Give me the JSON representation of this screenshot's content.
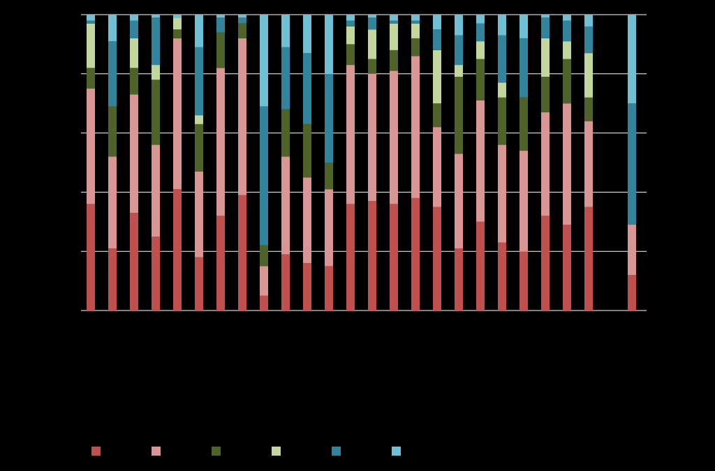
{
  "chart_data": {
    "type": "bar",
    "stacked": true,
    "orientation": "vertical",
    "normalized_percent": true,
    "ylim": [
      0,
      100
    ],
    "y_gridlines": [
      0,
      20,
      40,
      60,
      80,
      100
    ],
    "categories": [
      "",
      "",
      "",
      "",
      "",
      "",
      "",
      "",
      "",
      "",
      "",
      "",
      "",
      "",
      "",
      "",
      "",
      "",
      "",
      "",
      "",
      "",
      "",
      "",
      ""
    ],
    "x_slots": [
      0,
      1,
      2,
      3,
      4,
      5,
      6,
      7,
      8,
      9,
      10,
      11,
      12,
      13,
      14,
      15,
      16,
      17,
      18,
      19,
      20,
      21,
      22,
      23,
      25
    ],
    "legend": {
      "placement": "bottom-left"
    },
    "series": [
      {
        "color": "#c0504d",
        "values": [
          36,
          21,
          33,
          25,
          41,
          18,
          32,
          39,
          5,
          19,
          16,
          15,
          36,
          37,
          36,
          38,
          35,
          21,
          30,
          23,
          20,
          32,
          29,
          35,
          12
        ]
      },
      {
        "color": "#d99694",
        "values": [
          39,
          31,
          40,
          31,
          51,
          29,
          50,
          53,
          10,
          33,
          29,
          26,
          47,
          43,
          45,
          48,
          27,
          32,
          41,
          33,
          34,
          35,
          41,
          29,
          17
        ]
      },
      {
        "color": "#4f6228",
        "values": [
          7,
          17,
          9,
          22,
          3,
          16,
          12,
          5,
          7,
          16,
          18,
          9,
          7,
          5,
          7,
          6,
          8,
          26,
          14,
          16,
          18,
          12,
          15,
          8,
          0
        ]
      },
      {
        "color": "#c3d69b",
        "values": [
          15,
          0,
          10,
          5,
          4,
          3,
          0,
          0,
          0,
          0,
          0,
          0,
          6,
          10,
          9,
          5,
          18,
          4,
          6,
          5,
          0,
          13,
          6,
          15,
          0
        ]
      },
      {
        "color": "#31849b",
        "values": [
          1,
          22,
          6,
          16,
          0,
          23,
          5,
          2,
          47,
          21,
          24,
          30,
          2,
          4,
          1,
          1,
          7,
          10,
          6,
          16,
          20,
          7,
          7,
          9,
          41
        ]
      },
      {
        "color": "#6fbfd5",
        "values": [
          2,
          9,
          2,
          1,
          1,
          11,
          1,
          1,
          31,
          11,
          13,
          20,
          2,
          1,
          2,
          2,
          5,
          7,
          3,
          7,
          8,
          1,
          2,
          4,
          30
        ]
      }
    ]
  }
}
